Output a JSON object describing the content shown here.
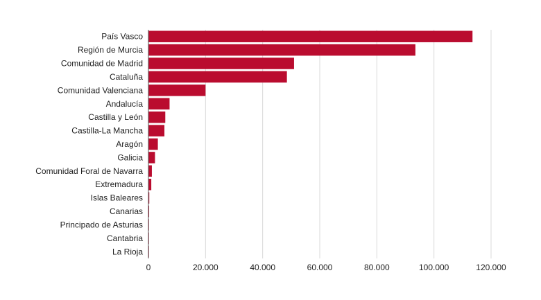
{
  "chart_data": {
    "type": "bar",
    "orientation": "horizontal",
    "categories": [
      "País Vasco",
      "Región de Murcia",
      "Comunidad de Madrid",
      "Cataluña",
      "Comunidad Valenciana",
      "Andalucía",
      "Castilla y León",
      "Castilla-La Mancha",
      "Aragón",
      "Galicia",
      "Comunidad Foral de Navarra",
      "Extremadura",
      "Islas Baleares",
      "Canarias",
      "Principado de Asturias",
      "Cantabria",
      "La Rioja"
    ],
    "values": [
      113500,
      93500,
      51000,
      48500,
      20000,
      7400,
      5900,
      5600,
      3300,
      2300,
      1200,
      1000,
      300,
      250,
      200,
      150,
      100
    ],
    "xlim": [
      0,
      120000
    ],
    "x_ticks": [
      0,
      20000,
      40000,
      60000,
      80000,
      100000,
      120000
    ],
    "x_tick_labels": [
      "0",
      "20.000",
      "40.000",
      "60.000",
      "80.000",
      "100.000",
      "120.000"
    ],
    "title": "",
    "xlabel": "",
    "ylabel": "",
    "grid": "vertical",
    "bar_color": "#BA0C2F"
  }
}
